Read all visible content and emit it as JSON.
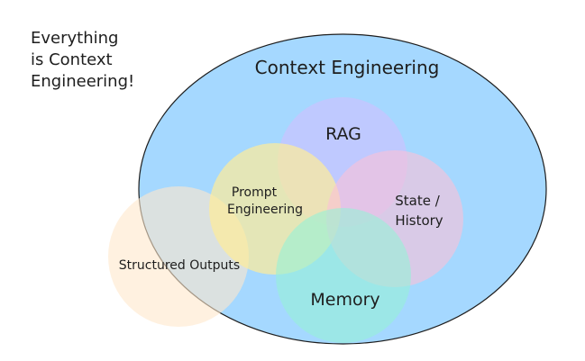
{
  "note": {
    "lines": [
      "Everything",
      "is Context",
      "Engineering!"
    ]
  },
  "diagram": {
    "main": {
      "label": "Context Engineering",
      "color": "#a5d8ff"
    },
    "circles": [
      {
        "id": "rag",
        "lines": [
          "RAG"
        ],
        "color": "#d0bfff"
      },
      {
        "id": "prompt",
        "lines": [
          "Prompt",
          "Engineering"
        ],
        "color": "#ffec99"
      },
      {
        "id": "state",
        "lines": [
          "State /",
          "History"
        ],
        "color": "#fcc2d7"
      },
      {
        "id": "memory",
        "lines": [
          "Memory"
        ],
        "color": "#96f2d7"
      },
      {
        "id": "structured",
        "lines": [
          "Structured Outputs"
        ],
        "color": "#ffe8cc"
      }
    ]
  }
}
